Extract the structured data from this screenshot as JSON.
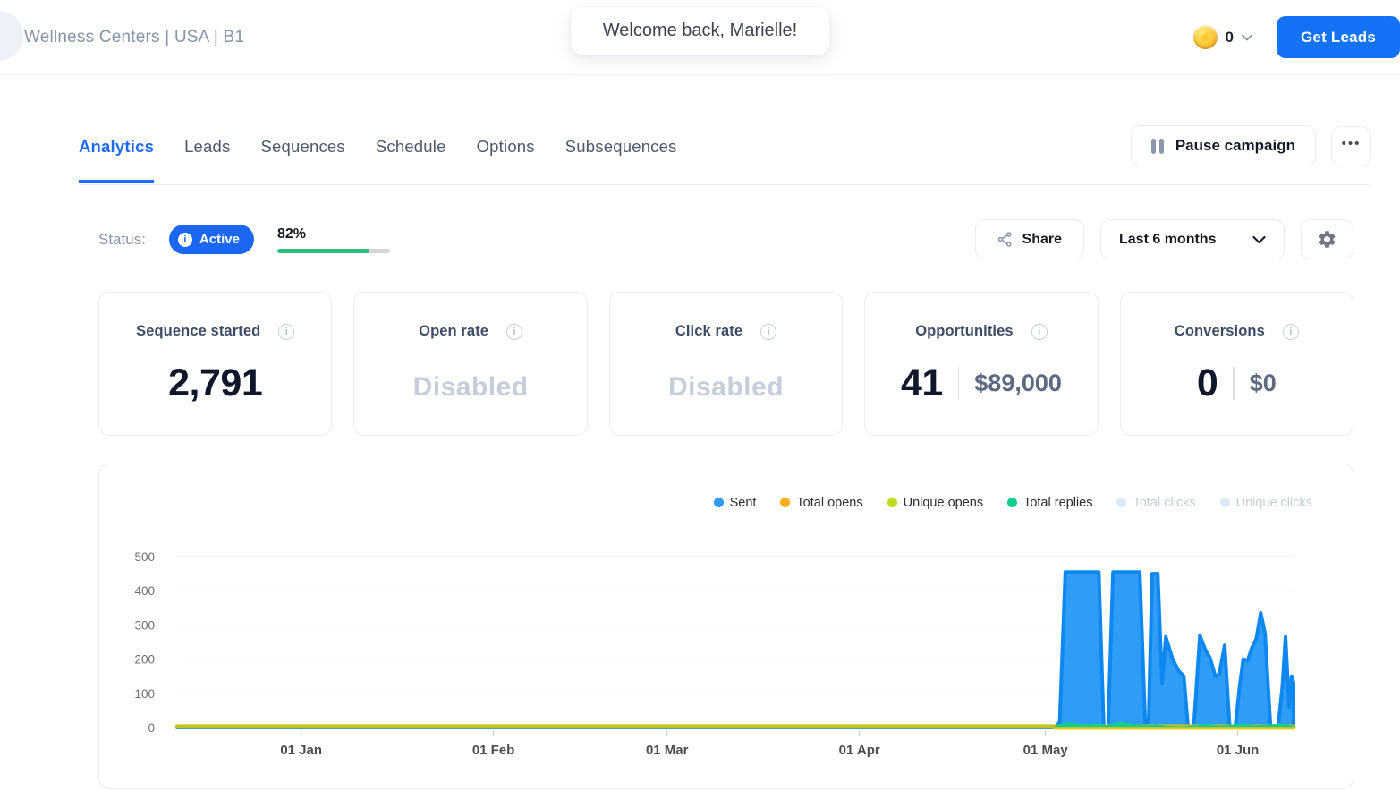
{
  "header": {
    "campaign_title": "Wellness Centers | USA | B1",
    "welcome_message": "Welcome back, Marielle!",
    "credits_count": "0",
    "get_leads_label": "Get Leads"
  },
  "tabs": {
    "items": [
      {
        "label": "Analytics"
      },
      {
        "label": "Leads"
      },
      {
        "label": "Sequences"
      },
      {
        "label": "Schedule"
      },
      {
        "label": "Options"
      },
      {
        "label": "Subsequences"
      }
    ],
    "active_tab": "Analytics",
    "pause_button_label": "Pause campaign",
    "more_button_label": "•••"
  },
  "status": {
    "label": "Status:",
    "badge_label": "Active",
    "badge_info_glyph": "i",
    "progress_label": "82%",
    "progress_value": 82,
    "badge_color": "#1b66f2",
    "progress_color": "#2dbd83"
  },
  "controls": {
    "share_label": "Share",
    "date_range_value": "Last 6 months"
  },
  "stat_cards": [
    {
      "label": "Sequence started",
      "value": "2,791",
      "secondary": "",
      "info_glyph": "i"
    },
    {
      "label": "Open rate",
      "value": "Disabled",
      "secondary": "",
      "info_glyph": "i"
    },
    {
      "label": "Click rate",
      "value": "Disabled",
      "secondary": "",
      "info_glyph": "i"
    },
    {
      "label": "Opportunities",
      "value": "41",
      "secondary": "$89,000",
      "info_glyph": "i"
    },
    {
      "label": "Conversions",
      "value": "0",
      "secondary": "$0",
      "info_glyph": "i"
    }
  ],
  "chart_data": {
    "type": "area",
    "title": "",
    "legend": [
      {
        "label": "Sent",
        "color": "#2e9cf5",
        "enabled": true
      },
      {
        "label": "Total opens",
        "color": "#fcaf1c",
        "enabled": true
      },
      {
        "label": "Unique opens",
        "color": "#c0dc1e",
        "enabled": true
      },
      {
        "label": "Total replies",
        "color": "#13ce8c",
        "enabled": true
      },
      {
        "label": "Total clicks",
        "color": "#d9eaf6",
        "enabled": false
      },
      {
        "label": "Unique clicks",
        "color": "#d9eaf6",
        "enabled": false
      }
    ],
    "y_axis": {
      "min": 0,
      "max": 500,
      "ticks": [
        0,
        100,
        200,
        300,
        400,
        500
      ],
      "grid": true
    },
    "x_axis": {
      "domain_days": [
        0,
        180
      ],
      "ticks": [
        {
          "label": "01 Jan",
          "day": 20
        },
        {
          "label": "01 Feb",
          "day": 51
        },
        {
          "label": "01 Mar",
          "day": 79
        },
        {
          "label": "01 Apr",
          "day": 110
        },
        {
          "label": "01 May",
          "day": 140
        },
        {
          "label": "01 Jun",
          "day": 171
        }
      ]
    },
    "series": [
      {
        "name": "Sent",
        "type": "area",
        "fill": "#2f9df5",
        "stroke": "#0f87f1",
        "stroke_width": 4,
        "points": [
          [
            0,
            0
          ],
          [
            141.5,
            0
          ],
          [
            142.3,
            15
          ],
          [
            143.2,
            455
          ],
          [
            148.6,
            455
          ],
          [
            149.4,
            0
          ],
          [
            150.1,
            0
          ],
          [
            150.9,
            455
          ],
          [
            155.2,
            455
          ],
          [
            156.1,
            0
          ],
          [
            156.6,
            0
          ],
          [
            157.2,
            450
          ],
          [
            158.1,
            450
          ],
          [
            158.8,
            130
          ],
          [
            159.4,
            265
          ],
          [
            160.5,
            200
          ],
          [
            161.5,
            165
          ],
          [
            162.3,
            150
          ],
          [
            163,
            0
          ],
          [
            163.9,
            0
          ],
          [
            164.9,
            270
          ],
          [
            165.7,
            230
          ],
          [
            166.5,
            205
          ],
          [
            167.4,
            150
          ],
          [
            168,
            155
          ],
          [
            168.9,
            240
          ],
          [
            169.7,
            0
          ],
          [
            170.6,
            0
          ],
          [
            171.3,
            120
          ],
          [
            171.9,
            200
          ],
          [
            172.6,
            195
          ],
          [
            173.2,
            230
          ],
          [
            174,
            260
          ],
          [
            174.7,
            335
          ],
          [
            175.4,
            275
          ],
          [
            176.3,
            0
          ],
          [
            177.5,
            0
          ],
          [
            178.2,
            120
          ],
          [
            178.7,
            265
          ],
          [
            179.3,
            60
          ],
          [
            179.7,
            150
          ],
          [
            180,
            130
          ]
        ]
      },
      {
        "name": "Total opens",
        "type": "line",
        "stroke": "#f8cd18",
        "stroke_width": 5,
        "points": [
          [
            141.5,
            0
          ],
          [
            180,
            0
          ]
        ]
      },
      {
        "name": "Unique opens",
        "type": "line",
        "stroke": "#c2c320",
        "stroke_width": 5,
        "points": [
          [
            0,
            3
          ],
          [
            180,
            3
          ]
        ]
      },
      {
        "name": "Total replies",
        "type": "area",
        "fill": "#13ce8c",
        "stroke": "none",
        "stroke_width": 0,
        "points": [
          [
            0,
            0
          ],
          [
            141,
            0
          ],
          [
            142,
            10
          ],
          [
            144,
            15
          ],
          [
            146,
            9
          ],
          [
            148,
            12
          ],
          [
            150,
            7
          ],
          [
            152,
            16
          ],
          [
            154,
            11
          ],
          [
            156,
            7
          ],
          [
            158,
            9
          ],
          [
            160,
            5
          ],
          [
            162,
            4
          ],
          [
            164,
            7
          ],
          [
            166,
            11
          ],
          [
            168,
            6
          ],
          [
            170,
            9
          ],
          [
            172,
            11
          ],
          [
            174,
            7
          ],
          [
            176,
            9
          ],
          [
            178,
            12
          ],
          [
            180,
            6
          ]
        ]
      }
    ]
  }
}
